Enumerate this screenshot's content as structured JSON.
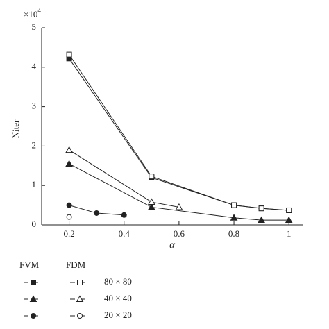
{
  "chart_data": {
    "type": "line",
    "x_label": "α",
    "y_label": "Niter",
    "y_multiplier": {
      "base": "×10",
      "exponent": "4"
    },
    "xlim": [
      0.1,
      1.05
    ],
    "xticks": [
      0.2,
      0.4,
      0.6,
      0.8,
      {
        "value": 1,
        "label": "1"
      }
    ],
    "ylim": [
      0,
      5
    ],
    "yticks": [
      0,
      1,
      2,
      3,
      4,
      5
    ],
    "legend": {
      "columns": [
        "FVM",
        "FDM"
      ],
      "rows": [
        "80 × 80",
        "40 × 40",
        "20 × 20"
      ]
    },
    "series": [
      {
        "marker": "square",
        "filled": true,
        "color": "#222",
        "x": [
          0.2,
          0.5,
          0.8,
          0.9,
          1
        ],
        "values": [
          4.22,
          1.2,
          0.5,
          0.42,
          0.37
        ]
      },
      {
        "marker": "square",
        "filled": false,
        "color": "#222",
        "x": [
          0.2,
          0.5,
          0.8,
          0.9,
          1
        ],
        "values": [
          4.32,
          1.23,
          0.5,
          0.42,
          0.37
        ]
      },
      {
        "marker": "triangle",
        "filled": true,
        "color": "#222",
        "x": [
          0.2,
          0.5,
          0.8,
          0.9,
          1
        ],
        "values": [
          1.55,
          0.45,
          0.18,
          0.12,
          0.12
        ]
      },
      {
        "marker": "triangle",
        "filled": false,
        "color": "#222",
        "x": [
          0.2,
          0.5,
          0.6
        ],
        "values": [
          1.9,
          0.58,
          0.45
        ]
      },
      {
        "marker": "circle",
        "filled": true,
        "color": "#222",
        "x": [
          0.2,
          0.3,
          0.4
        ],
        "values": [
          0.5,
          0.3,
          0.25
        ]
      },
      {
        "marker": "circle",
        "filled": false,
        "color": "#222",
        "x": [
          0.2
        ],
        "values": [
          0.2
        ]
      }
    ]
  }
}
